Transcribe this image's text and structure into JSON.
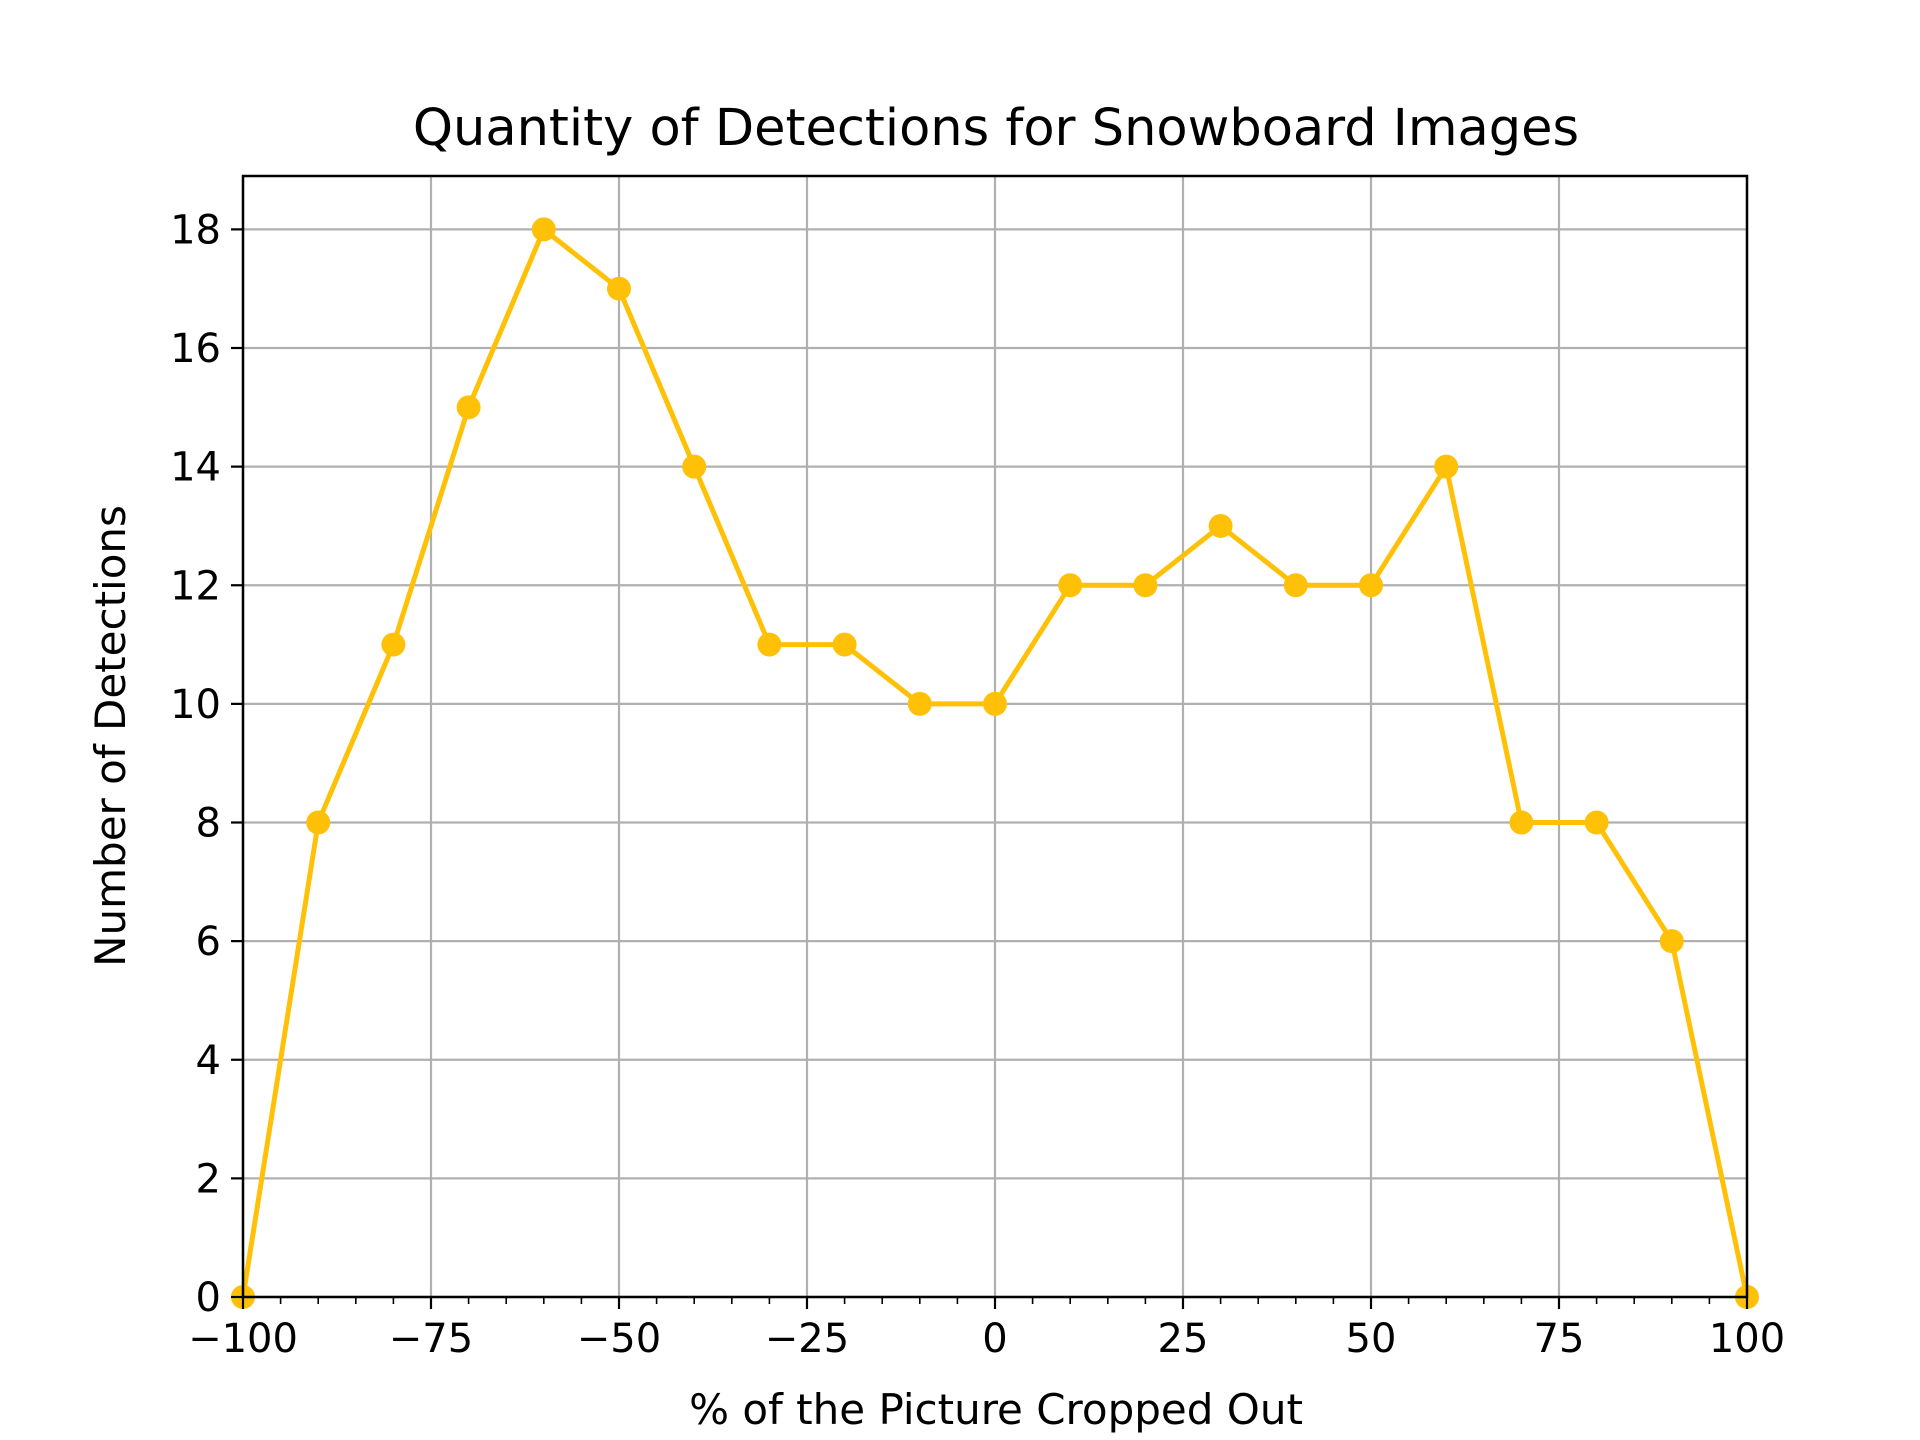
{
  "chart_data": {
    "type": "line",
    "title": "Quantity of Detections for Snowboard Images",
    "xlabel": "% of the Picture Cropped Out",
    "ylabel": "Number of Detections",
    "xlim": [
      -100,
      100
    ],
    "ylim": [
      0,
      18.9
    ],
    "grid": true,
    "color": "#FFC107",
    "x_ticks": [
      -100,
      -75,
      -50,
      -25,
      0,
      25,
      50,
      75,
      100
    ],
    "x_tick_labels": [
      "−100",
      "−75",
      "−50",
      "−25",
      "0",
      "25",
      "50",
      "75",
      "100"
    ],
    "y_ticks": [
      0,
      2,
      4,
      6,
      8,
      10,
      12,
      14,
      16,
      18
    ],
    "y_tick_labels": [
      "0",
      "2",
      "4",
      "6",
      "8",
      "10",
      "12",
      "14",
      "16",
      "18"
    ],
    "series": [
      {
        "x": [
          -100,
          -90,
          -80,
          -70,
          -60,
          -50,
          -40,
          -30,
          -20,
          -10,
          0,
          10,
          20,
          30,
          40,
          50,
          60,
          70,
          80,
          90,
          100
        ],
        "y": [
          0,
          8,
          11,
          15,
          18,
          17,
          14,
          11,
          11,
          10,
          10,
          12,
          12,
          13,
          12,
          12,
          14,
          8,
          8,
          6,
          0
        ]
      }
    ]
  }
}
